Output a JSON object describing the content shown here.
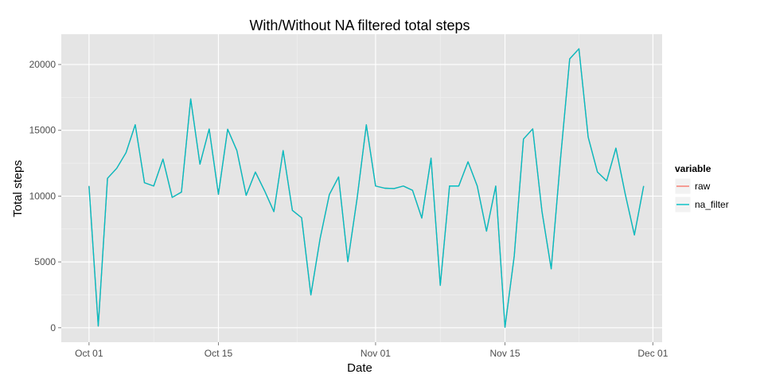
{
  "chart_data": {
    "type": "line",
    "title": "With/Without NA filtered total steps",
    "xlabel": "Date",
    "ylabel": "Total steps",
    "xlim": [
      "2012-09-28",
      "2012-12-02"
    ],
    "ylim": [
      -1100,
      22300
    ],
    "grid": true,
    "x_ticks": [
      {
        "date": "2012-10-01",
        "label": "Oct 01"
      },
      {
        "date": "2012-10-15",
        "label": "Oct 15"
      },
      {
        "date": "2012-11-01",
        "label": "Nov 01"
      },
      {
        "date": "2012-11-15",
        "label": "Nov 15"
      },
      {
        "date": "2012-12-01",
        "label": "Dec 01"
      }
    ],
    "y_ticks": [
      0,
      5000,
      10000,
      15000,
      20000
    ],
    "legend": {
      "title": "variable",
      "position": "right"
    },
    "x": [
      "2012-10-01",
      "2012-10-02",
      "2012-10-03",
      "2012-10-04",
      "2012-10-05",
      "2012-10-06",
      "2012-10-07",
      "2012-10-08",
      "2012-10-09",
      "2012-10-10",
      "2012-10-11",
      "2012-10-12",
      "2012-10-13",
      "2012-10-14",
      "2012-10-15",
      "2012-10-16",
      "2012-10-17",
      "2012-10-18",
      "2012-10-19",
      "2012-10-20",
      "2012-10-21",
      "2012-10-22",
      "2012-10-23",
      "2012-10-24",
      "2012-10-25",
      "2012-10-26",
      "2012-10-27",
      "2012-10-28",
      "2012-10-29",
      "2012-10-30",
      "2012-10-31",
      "2012-11-01",
      "2012-11-02",
      "2012-11-03",
      "2012-11-04",
      "2012-11-05",
      "2012-11-06",
      "2012-11-07",
      "2012-11-08",
      "2012-11-09",
      "2012-11-10",
      "2012-11-11",
      "2012-11-12",
      "2012-11-13",
      "2012-11-14",
      "2012-11-15",
      "2012-11-16",
      "2012-11-17",
      "2012-11-18",
      "2012-11-19",
      "2012-11-20",
      "2012-11-21",
      "2012-11-22",
      "2012-11-23",
      "2012-11-24",
      "2012-11-25",
      "2012-11-26",
      "2012-11-27",
      "2012-11-28",
      "2012-11-29",
      "2012-11-30"
    ],
    "series": [
      {
        "name": "raw",
        "color": "#F8766D",
        "values": [
          10766,
          126,
          11352,
          12116,
          13294,
          15420,
          11015,
          10766,
          12811,
          9900,
          10304,
          17382,
          12426,
          15098,
          10139,
          15084,
          13452,
          10056,
          11829,
          10395,
          8821,
          13460,
          8918,
          8355,
          2492,
          6778,
          10119,
          11458,
          5018,
          9819,
          15414,
          10766,
          10600,
          10571,
          10766,
          10439,
          8334,
          12883,
          3219,
          10766,
          10766,
          12608,
          10765,
          7336,
          10766,
          41,
          5441,
          14339,
          15110,
          8841,
          4472,
          12787,
          20427,
          21194,
          14478,
          11834,
          11162,
          13646,
          10183,
          7047,
          10766
        ]
      },
      {
        "name": "na_filter",
        "color": "#00BFC4",
        "values": [
          10766,
          126,
          11352,
          12116,
          13294,
          15420,
          11015,
          10766,
          12811,
          9900,
          10304,
          17382,
          12426,
          15098,
          10139,
          15084,
          13452,
          10056,
          11829,
          10395,
          8821,
          13460,
          8918,
          8355,
          2492,
          6778,
          10119,
          11458,
          5018,
          9819,
          15414,
          10766,
          10600,
          10571,
          10766,
          10439,
          8334,
          12883,
          3219,
          10766,
          10766,
          12608,
          10765,
          7336,
          10766,
          41,
          5441,
          14339,
          15110,
          8841,
          4472,
          12787,
          20427,
          21194,
          14478,
          11834,
          11162,
          13646,
          10183,
          7047,
          10766
        ]
      }
    ]
  }
}
